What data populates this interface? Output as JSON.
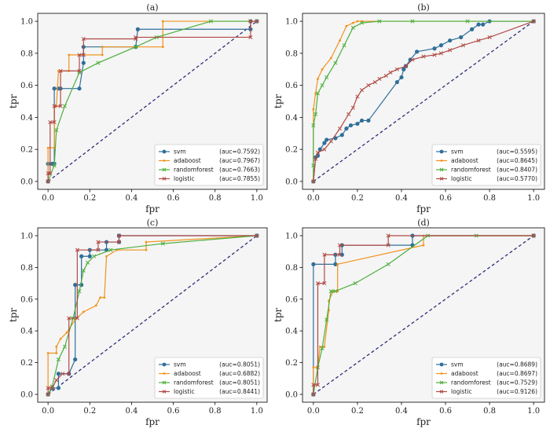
{
  "colors": {
    "svm": "#2f6f9a",
    "adaboost": "#f0931e",
    "randomforest": "#4caf3c",
    "logistic": "#b04a45",
    "diagonal": "#2e2e7a",
    "axes_bg": "#f5f5f5"
  },
  "chart_data": [
    {
      "type": "line",
      "title": "(a)",
      "xlabel": "fpr",
      "ylabel": "tpr",
      "xlim": [
        0,
        1
      ],
      "ylim": [
        0,
        1
      ],
      "xticks": [
        "0.0",
        "0.2",
        "0.4",
        "0.6",
        "0.8",
        "1.0"
      ],
      "yticks": [
        "0.0",
        "0.2",
        "0.4",
        "0.6",
        "0.8",
        "1.0"
      ],
      "grid": false,
      "legend_position": "bottom-right",
      "series": [
        {
          "name": "svm",
          "auc": "(auc=0.7592)",
          "marker": "circle",
          "x": [
            0,
            0,
            0.02,
            0.03,
            0.03,
            0.05,
            0.06,
            0.15,
            0.17,
            0.17,
            0.42,
            0.43,
            0.97,
            0.97,
            1.0
          ],
          "y": [
            0,
            0.11,
            0.11,
            0.11,
            0.58,
            0.58,
            0.58,
            0.58,
            0.74,
            0.84,
            0.84,
            0.95,
            0.95,
            1.0,
            1.0
          ]
        },
        {
          "name": "adaboost",
          "auc": "(auc=0.7967)",
          "marker": "dot",
          "x": [
            0,
            0,
            0.03,
            0.03,
            0.04,
            0.05,
            0.1,
            0.1,
            0.26,
            0.26,
            0.55,
            0.55,
            1.0
          ],
          "y": [
            0,
            0.21,
            0.21,
            0.47,
            0.47,
            0.69,
            0.69,
            0.79,
            0.79,
            0.84,
            0.84,
            1.0,
            1.0
          ]
        },
        {
          "name": "randomforest",
          "auc": "(auc=0.7663)",
          "marker": "x",
          "x": [
            0,
            0.03,
            0.04,
            0.08,
            0.15,
            0.24,
            0.42,
            0.52,
            0.78,
            1.0
          ],
          "y": [
            0,
            0.1,
            0.32,
            0.47,
            0.68,
            0.74,
            0.84,
            0.9,
            1.0,
            1.0
          ]
        },
        {
          "name": "logistic",
          "auc": "(auc=0.7855)",
          "marker": "x",
          "x": [
            0,
            0,
            0.01,
            0.01,
            0.03,
            0.03,
            0.06,
            0.06,
            0.15,
            0.15,
            0.17,
            0.17,
            0.42,
            0.42,
            0.97,
            0.97,
            1.0
          ],
          "y": [
            0,
            0.05,
            0.05,
            0.37,
            0.37,
            0.47,
            0.47,
            0.69,
            0.69,
            0.79,
            0.79,
            0.89,
            0.89,
            0.9,
            0.9,
            1.0,
            1.0
          ]
        }
      ]
    },
    {
      "type": "line",
      "title": "(b)",
      "xlabel": "fpr",
      "ylabel": "tpr",
      "xlim": [
        0,
        1
      ],
      "ylim": [
        0,
        1
      ],
      "xticks": [
        "0.0",
        "0.2",
        "0.4",
        "0.6",
        "0.8",
        "1.0"
      ],
      "yticks": [
        "0.0",
        "0.2",
        "0.4",
        "0.6",
        "0.8",
        "1.0"
      ],
      "grid": false,
      "legend_position": "bottom-right",
      "series": [
        {
          "name": "svm",
          "auc": "(auc=0.5595)",
          "marker": "circle",
          "x": [
            0,
            0.01,
            0.02,
            0.03,
            0.05,
            0.06,
            0.1,
            0.13,
            0.15,
            0.17,
            0.2,
            0.22,
            0.25,
            0.38,
            0.4,
            0.41,
            0.42,
            0.44,
            0.47,
            0.55,
            0.58,
            0.62,
            0.67,
            0.72,
            0.75,
            0.77,
            0.8,
            1.0
          ],
          "y": [
            0,
            0.15,
            0.16,
            0.2,
            0.24,
            0.26,
            0.27,
            0.29,
            0.33,
            0.35,
            0.36,
            0.38,
            0.38,
            0.62,
            0.65,
            0.7,
            0.72,
            0.76,
            0.81,
            0.83,
            0.85,
            0.88,
            0.9,
            0.95,
            0.98,
            0.98,
            1.0,
            1.0
          ]
        },
        {
          "name": "adaboost",
          "auc": "(auc=0.8645)",
          "marker": "dot",
          "x": [
            0,
            0,
            0.01,
            0.02,
            0.04,
            0.08,
            0.12,
            0.15,
            0.18,
            0.2,
            0.22,
            1.0
          ],
          "y": [
            0,
            0.45,
            0.55,
            0.64,
            0.7,
            0.77,
            0.88,
            0.97,
            0.99,
            1.0,
            1.0,
            1.0
          ]
        },
        {
          "name": "randomforest",
          "auc": "(auc=0.8407)",
          "marker": "x",
          "x": [
            0,
            0,
            0,
            0.01,
            0.02,
            0.04,
            0.06,
            0.1,
            0.14,
            0.18,
            0.22,
            0.3,
            0.45,
            0.7,
            1.0
          ],
          "y": [
            0,
            0.1,
            0.35,
            0.42,
            0.55,
            0.6,
            0.65,
            0.74,
            0.85,
            0.96,
            0.99,
            1.0,
            1.0,
            1.0,
            1.0
          ]
        },
        {
          "name": "logistic",
          "auc": "(auc=0.5770)",
          "marker": "x",
          "x": [
            0,
            0.01,
            0.02,
            0.05,
            0.08,
            0.12,
            0.16,
            0.18,
            0.2,
            0.22,
            0.25,
            0.28,
            0.3,
            0.33,
            0.35,
            0.38,
            0.42,
            0.45,
            0.5,
            0.55,
            0.58,
            0.62,
            0.68,
            0.75,
            0.8,
            1.0
          ],
          "y": [
            0,
            0.14,
            0.18,
            0.2,
            0.25,
            0.33,
            0.42,
            0.46,
            0.53,
            0.57,
            0.6,
            0.62,
            0.64,
            0.66,
            0.68,
            0.7,
            0.72,
            0.76,
            0.78,
            0.79,
            0.8,
            0.82,
            0.85,
            0.88,
            0.9,
            1.0
          ]
        }
      ]
    },
    {
      "type": "line",
      "title": "(c)",
      "xlabel": "fpr",
      "ylabel": "tpr",
      "xlim": [
        0,
        1
      ],
      "ylim": [
        0,
        1
      ],
      "xticks": [
        "0.0",
        "0.2",
        "0.4",
        "0.6",
        "0.8",
        "1.0"
      ],
      "yticks": [
        "0.0",
        "0.2",
        "0.4",
        "0.6",
        "0.8",
        "1.0"
      ],
      "grid": false,
      "legend_position": "bottom-right",
      "series": [
        {
          "name": "svm",
          "auc": "(auc=0.8051)",
          "marker": "circle",
          "x": [
            0,
            0.02,
            0.05,
            0.05,
            0.1,
            0.13,
            0.13,
            0.16,
            0.16,
            0.2,
            0.2,
            0.28,
            0.28,
            0.34,
            0.34,
            1.0
          ],
          "y": [
            0,
            0.04,
            0.04,
            0.13,
            0.13,
            0.22,
            0.69,
            0.69,
            0.87,
            0.87,
            0.91,
            0.91,
            0.96,
            0.96,
            1.0,
            1.0
          ]
        },
        {
          "name": "adaboost",
          "auc": "(auc=0.6882)",
          "marker": "dot",
          "x": [
            0,
            0,
            0.04,
            0.04,
            0.06,
            0.09,
            0.13,
            0.17,
            0.23,
            0.25,
            0.27,
            0.28,
            0.33,
            0.47,
            0.47,
            1.0
          ],
          "y": [
            0,
            0.26,
            0.26,
            0.3,
            0.35,
            0.39,
            0.47,
            0.52,
            0.56,
            0.61,
            0.61,
            0.87,
            0.91,
            0.91,
            0.96,
            1.0
          ]
        },
        {
          "name": "randomforest",
          "auc": "(auc=0.8051)",
          "marker": "x",
          "x": [
            0,
            0.02,
            0.05,
            0.08,
            0.12,
            0.15,
            0.17,
            0.19,
            0.22,
            0.3,
            0.55,
            1.0
          ],
          "y": [
            0,
            0.05,
            0.22,
            0.3,
            0.48,
            0.65,
            0.78,
            0.83,
            0.87,
            0.91,
            0.95,
            1.0
          ]
        },
        {
          "name": "logistic",
          "auc": "(auc=0.8441)",
          "marker": "x",
          "x": [
            0,
            0,
            0.02,
            0.04,
            0.07,
            0.1,
            0.1,
            0.14,
            0.14,
            0.24,
            0.24,
            0.34,
            0.34,
            1.0
          ],
          "y": [
            0,
            0.04,
            0.04,
            0.09,
            0.13,
            0.13,
            0.48,
            0.48,
            0.91,
            0.91,
            0.96,
            0.96,
            1.0,
            1.0
          ]
        }
      ]
    },
    {
      "type": "line",
      "title": "(d)",
      "xlabel": "fpr",
      "ylabel": "tpr",
      "xlim": [
        0,
        1
      ],
      "ylim": [
        0,
        1
      ],
      "xticks": [
        "0.0",
        "0.2",
        "0.4",
        "0.6",
        "0.8",
        "1.0"
      ],
      "yticks": [
        "0.0",
        "0.2",
        "0.4",
        "0.6",
        "0.8",
        "1.0"
      ],
      "grid": false,
      "legend_position": "bottom-right",
      "series": [
        {
          "name": "svm",
          "auc": "(auc=0.8689)",
          "marker": "circle",
          "x": [
            0,
            0,
            0.1,
            0.1,
            0.13,
            0.13,
            0.45,
            0.45,
            1.0
          ],
          "y": [
            0,
            0.82,
            0.82,
            0.88,
            0.88,
            0.94,
            0.94,
            1.0,
            1.0
          ]
        },
        {
          "name": "adaboost",
          "auc": "(auc=0.8697)",
          "marker": "dot",
          "x": [
            0,
            0,
            0.02,
            0.03,
            0.05,
            0.07,
            0.07,
            0.09,
            0.11,
            0.11,
            0.5,
            0.5,
            1.0
          ],
          "y": [
            0,
            0.17,
            0.17,
            0.3,
            0.3,
            0.53,
            0.59,
            0.65,
            0.65,
            0.82,
            0.94,
            1.0,
            1.0
          ]
        },
        {
          "name": "randomforest",
          "auc": "(auc=0.7529)",
          "marker": "x",
          "x": [
            0,
            0.02,
            0.04,
            0.06,
            0.08,
            0.1,
            0.19,
            0.34,
            0.52,
            0.74,
            1.0
          ],
          "y": [
            0,
            0.17,
            0.29,
            0.47,
            0.65,
            0.65,
            0.7,
            0.82,
            1.0,
            1.0,
            1.0
          ]
        },
        {
          "name": "logistic",
          "auc": "(auc=0.9126)",
          "marker": "x",
          "x": [
            0,
            0,
            0.02,
            0.02,
            0.05,
            0.05,
            0.12,
            0.12,
            0.34,
            0.34,
            1.0
          ],
          "y": [
            0,
            0.06,
            0.06,
            0.7,
            0.7,
            0.88,
            0.88,
            0.94,
            0.94,
            1.0,
            1.0
          ]
        }
      ]
    }
  ]
}
